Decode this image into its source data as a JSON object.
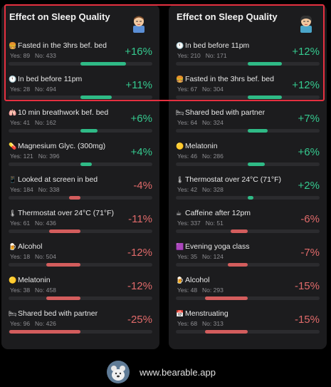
{
  "colors": {
    "positive": "#35c98f",
    "negative": "#e06a6a",
    "highlight": "#e53040"
  },
  "left": {
    "title": "Effect on Sleep Quality",
    "avatar_icon": "sleeping-person-icon",
    "items": [
      {
        "icon": "burger-icon",
        "emoji": "🍔",
        "label": "Fasted in the 3hrs bef. bed",
        "yes": "Yes: 89",
        "no": "No: 433",
        "value": "+16%",
        "sign": "pos",
        "magnitude": 0.16
      },
      {
        "icon": "clock-icon",
        "emoji": "🕚",
        "label": "In bed before 11pm",
        "yes": "Yes: 28",
        "no": "No: 494",
        "value": "+11%",
        "sign": "pos",
        "magnitude": 0.11
      },
      {
        "icon": "lungs-icon",
        "emoji": "🫁",
        "label": "10 min breathwork bef. bed",
        "yes": "Yes: 41",
        "no": "No: 162",
        "value": "+6%",
        "sign": "pos",
        "magnitude": 0.06
      },
      {
        "icon": "pill-icon",
        "emoji": "💊",
        "label": "Magnesium Glyc. (300mg)",
        "yes": "Yes: 121",
        "no": "No: 396",
        "value": "+4%",
        "sign": "pos",
        "magnitude": 0.04
      },
      {
        "icon": "phone-icon",
        "emoji": "📱",
        "label": "Looked at screen in bed",
        "yes": "Yes: 184",
        "no": "No: 338",
        "value": "-4%",
        "sign": "neg",
        "magnitude": 0.04
      },
      {
        "icon": "thermometer-icon",
        "emoji": "🌡",
        "label": "Thermostat over 24°C (71°F)",
        "yes": "Yes: 61",
        "no": "No: 436",
        "value": "-11%",
        "sign": "neg",
        "magnitude": 0.11
      },
      {
        "icon": "beer-icon",
        "emoji": "🍺",
        "label": "Alcohol",
        "yes": "Yes: 18",
        "no": "No: 504",
        "value": "-12%",
        "sign": "neg",
        "magnitude": 0.12
      },
      {
        "icon": "melatonin-icon",
        "emoji": "🟡",
        "label": "Melatonin",
        "yes": "Yes: 38",
        "no": "No: 458",
        "value": "-12%",
        "sign": "neg",
        "magnitude": 0.12
      },
      {
        "icon": "bed-icon",
        "emoji": "🛏",
        "label": "Shared bed with partner",
        "yes": "Yes: 96",
        "no": "No: 426",
        "value": "-25%",
        "sign": "neg",
        "magnitude": 0.25
      }
    ]
  },
  "right": {
    "title": "Effect on Sleep Quality",
    "avatar_icon": "sleeping-woman-icon",
    "items": [
      {
        "icon": "clock-icon",
        "emoji": "🕚",
        "label": "In bed before 11pm",
        "yes": "Yes: 210",
        "no": "No: 171",
        "value": "+12%",
        "sign": "pos",
        "magnitude": 0.12
      },
      {
        "icon": "burger-icon",
        "emoji": "🍔",
        "label": "Fasted in the 3hrs bef. bed",
        "yes": "Yes: 67",
        "no": "No: 304",
        "value": "+12%",
        "sign": "pos",
        "magnitude": 0.12
      },
      {
        "icon": "bed-icon",
        "emoji": "🛏",
        "label": "Shared bed with partner",
        "yes": "Yes: 64",
        "no": "No: 324",
        "value": "+7%",
        "sign": "pos",
        "magnitude": 0.07
      },
      {
        "icon": "melatonin-icon",
        "emoji": "🟡",
        "label": "Melatonin",
        "yes": "Yes: 46",
        "no": "No: 286",
        "value": "+6%",
        "sign": "pos",
        "magnitude": 0.06
      },
      {
        "icon": "thermometer-icon",
        "emoji": "🌡",
        "label": "Thermostat over 24°C (71°F)",
        "yes": "Yes: 42",
        "no": "No: 328",
        "value": "+2%",
        "sign": "pos",
        "magnitude": 0.02
      },
      {
        "icon": "coffee-icon",
        "emoji": "☕",
        "label": "Caffeine after 12pm",
        "yes": "Yes: 337",
        "no": "No: 51",
        "value": "-6%",
        "sign": "neg",
        "magnitude": 0.06
      },
      {
        "icon": "yoga-icon",
        "emoji": "🟪",
        "label": "Evening yoga class",
        "yes": "Yes: 35",
        "no": "No: 124",
        "value": "-7%",
        "sign": "neg",
        "magnitude": 0.07
      },
      {
        "icon": "beer-icon",
        "emoji": "🍺",
        "label": "Alcohol",
        "yes": "Yes: 48",
        "no": "No: 293",
        "value": "-15%",
        "sign": "neg",
        "magnitude": 0.15
      },
      {
        "icon": "calendar-icon",
        "emoji": "📅",
        "label": "Menstruating",
        "yes": "Yes: 68",
        "no": "No: 313",
        "value": "-15%",
        "sign": "neg",
        "magnitude": 0.15
      }
    ]
  },
  "footer": {
    "logo_icon": "bear-logo-icon",
    "text": "www.bearable.app"
  }
}
